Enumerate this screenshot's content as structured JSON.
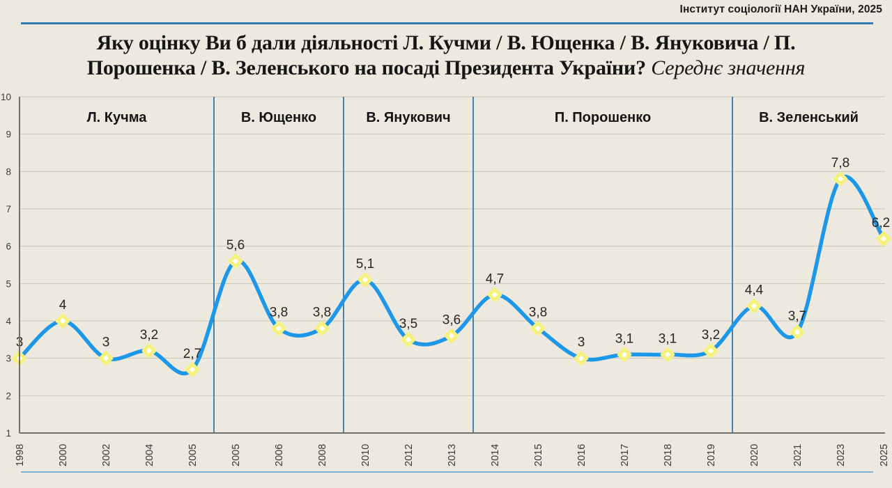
{
  "header": {
    "source": "Інститут соціології НАН України, 2025"
  },
  "title": {
    "line1": "Яку оцінку Ви б дали діяльності Л. Кучми / В. Ющенка / В. Януковича / П.",
    "line2": "Порошенка / В. Зеленського  на посаді Президента України?",
    "suffix": "Середнє значення"
  },
  "chart_data": {
    "type": "line",
    "title": "Яку оцінку Ви б дали діяльності Л. Кучми / В. Ющенка / В. Януковича / П. Порошенка / В. Зеленського на посаді Президента України? Середнє значення",
    "x": [
      "1998",
      "2000",
      "2002",
      "2004",
      "2005",
      "2005",
      "2006",
      "2008",
      "2010",
      "2012",
      "2013",
      "2014",
      "2015",
      "2016",
      "2017",
      "2018",
      "2019",
      "2020",
      "2021",
      "2023",
      "2025"
    ],
    "values": [
      3,
      4,
      3,
      3.2,
      2.7,
      5.6,
      3.8,
      3.8,
      5.1,
      3.5,
      3.6,
      4.7,
      3.8,
      3,
      3.1,
      3.1,
      3.2,
      4.4,
      3.7,
      7.8,
      6.2
    ],
    "labels": [
      "3",
      "4",
      "3",
      "3,2",
      "2,7",
      "5,6",
      "3,8",
      "3,8",
      "5,1",
      "3,5",
      "3,6",
      "4,7",
      "3,8",
      "3",
      "3,1",
      "3,1",
      "3,2",
      "4,4",
      "3,7",
      "7,8",
      "6,2"
    ],
    "sections": [
      {
        "label": "Л. Кучма",
        "from": 0,
        "to": 4
      },
      {
        "label": "В. Ющенко",
        "from": 5,
        "to": 7
      },
      {
        "label": "В. Янукович",
        "from": 8,
        "to": 10
      },
      {
        "label": "П. Порошенко",
        "from": 11,
        "to": 16
      },
      {
        "label": "В. Зеленський",
        "from": 17,
        "to": 20
      }
    ],
    "ylim": [
      1,
      10
    ],
    "yticks": [
      1,
      2,
      3,
      4,
      5,
      6,
      7,
      8,
      9,
      10
    ],
    "grid": true,
    "legend": "none",
    "colors": {
      "line": "#1D97E8",
      "marker": "#F6F17D",
      "marker_center": "#FFFFFF",
      "separator": "#4581AC",
      "grid": "#C8C5BC",
      "axis": "#6F6F69",
      "tick_text": "#3A3A3A",
      "label_text": "#262626",
      "section_text": "#141414",
      "background": "#EDE9DF"
    }
  }
}
